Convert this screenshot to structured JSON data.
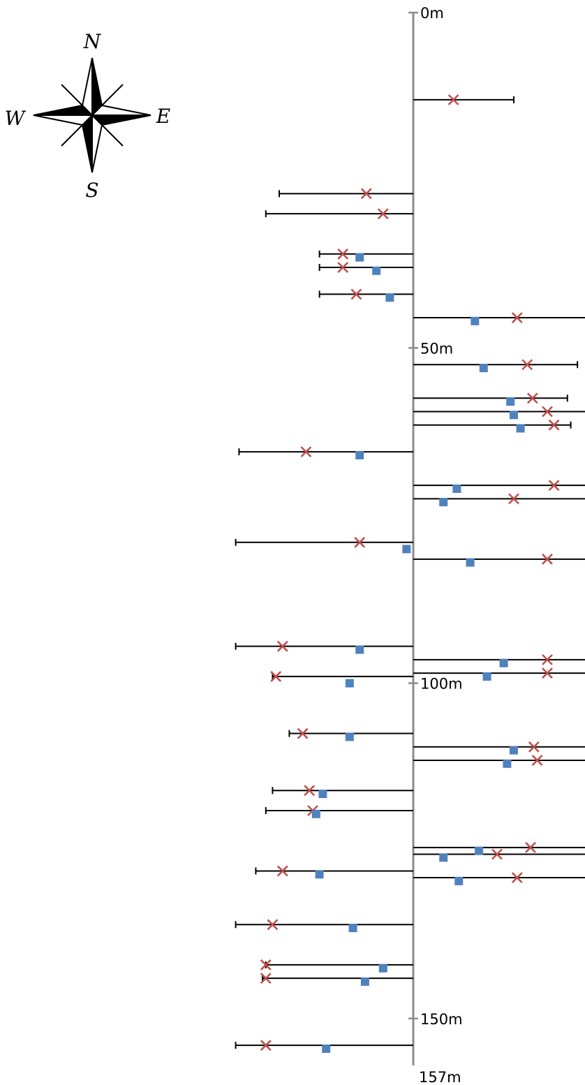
{
  "compass": {
    "icon": "compass-rose-icon",
    "north": "N",
    "south": "S",
    "east": "E",
    "west": "W"
  },
  "chart_data": {
    "type": "scatter",
    "orientation": "vertical-depth-axis",
    "title": "",
    "xlabel": "",
    "ylabel": "",
    "ylim": [
      0,
      157
    ],
    "ticks": [
      {
        "value": 0,
        "label": "0m"
      },
      {
        "value": 50,
        "label": "50m"
      },
      {
        "value": 100,
        "label": "100m"
      },
      {
        "value": 150,
        "label": "150m"
      }
    ],
    "axis_end_label": "157m",
    "x_range": [
      -26.5,
      26
    ],
    "colors": {
      "axis": "#8c8c8c",
      "bar": "#000000",
      "cross": "#c0504d",
      "square": "#4f81bd"
    },
    "series": [
      {
        "marker": "bar",
        "points": [
          {
            "depth": 13,
            "start": 0,
            "end": 15
          },
          {
            "depth": 27,
            "start": 0,
            "end": -20
          },
          {
            "depth": 30,
            "start": 0,
            "end": -22
          },
          {
            "depth": 36,
            "start": 0,
            "end": -14
          },
          {
            "depth": 38,
            "start": 0,
            "end": -14
          },
          {
            "depth": 42,
            "start": 0,
            "end": -14
          },
          {
            "depth": 45.5,
            "start": 0,
            "end": 26
          },
          {
            "depth": 52.5,
            "start": 0,
            "end": 24.5
          },
          {
            "depth": 57.5,
            "start": 0,
            "end": 23
          },
          {
            "depth": 59.5,
            "start": 0,
            "end": 26
          },
          {
            "depth": 61.5,
            "start": 0,
            "end": 23.5
          },
          {
            "depth": 65.5,
            "start": 0,
            "end": -26
          },
          {
            "depth": 70.5,
            "start": 0,
            "end": 26
          },
          {
            "depth": 72.5,
            "start": 0,
            "end": 26
          },
          {
            "depth": 79,
            "start": 0,
            "end": -26.5
          },
          {
            "depth": 81.5,
            "start": 0,
            "end": 26
          },
          {
            "depth": 94.5,
            "start": 0,
            "end": -26.5
          },
          {
            "depth": 96.5,
            "start": 0,
            "end": 26
          },
          {
            "depth": 98.5,
            "start": 0,
            "end": 26
          },
          {
            "depth": 99,
            "start": 0,
            "end": -21
          },
          {
            "depth": 107.5,
            "start": 0,
            "end": -18.5
          },
          {
            "depth": 109.5,
            "start": 0,
            "end": 26
          },
          {
            "depth": 111.5,
            "start": 0,
            "end": 26
          },
          {
            "depth": 116,
            "start": 0,
            "end": -21
          },
          {
            "depth": 119,
            "start": 0,
            "end": -22
          },
          {
            "depth": 124.5,
            "start": 0,
            "end": 26
          },
          {
            "depth": 125.5,
            "start": 0,
            "end": 26
          },
          {
            "depth": 128,
            "start": 0,
            "end": -23.5
          },
          {
            "depth": 129,
            "start": 0,
            "end": 26
          },
          {
            "depth": 136,
            "start": 0,
            "end": -26.5
          },
          {
            "depth": 142,
            "start": 0,
            "end": -22
          },
          {
            "depth": 144,
            "start": 0,
            "end": -22.5
          },
          {
            "depth": 154,
            "start": 0,
            "end": -26.5
          }
        ]
      },
      {
        "marker": "cross",
        "points": [
          {
            "depth": 13,
            "x": 6
          },
          {
            "depth": 27,
            "x": -7
          },
          {
            "depth": 30,
            "x": -4.5
          },
          {
            "depth": 36,
            "x": -10.5
          },
          {
            "depth": 38,
            "x": -10.5
          },
          {
            "depth": 42,
            "x": -8.5
          },
          {
            "depth": 45.5,
            "x": 15.5
          },
          {
            "depth": 52.5,
            "x": 17
          },
          {
            "depth": 57.5,
            "x": 17.8
          },
          {
            "depth": 59.5,
            "x": 20
          },
          {
            "depth": 61.5,
            "x": 21
          },
          {
            "depth": 65.5,
            "x": -16
          },
          {
            "depth": 70.5,
            "x": 21
          },
          {
            "depth": 72.5,
            "x": 15
          },
          {
            "depth": 79,
            "x": -8
          },
          {
            "depth": 81.5,
            "x": 20
          },
          {
            "depth": 94.5,
            "x": -19.5
          },
          {
            "depth": 96.5,
            "x": 20
          },
          {
            "depth": 98.5,
            "x": 20
          },
          {
            "depth": 99,
            "x": -20.5
          },
          {
            "depth": 107.5,
            "x": -16.5
          },
          {
            "depth": 109.5,
            "x": 18
          },
          {
            "depth": 111.5,
            "x": 18.5
          },
          {
            "depth": 116,
            "x": -15.5
          },
          {
            "depth": 119,
            "x": -15
          },
          {
            "depth": 124.5,
            "x": 17.5
          },
          {
            "depth": 125.5,
            "x": 12.5
          },
          {
            "depth": 128,
            "x": -19.5
          },
          {
            "depth": 129,
            "x": 15.5
          },
          {
            "depth": 136,
            "x": -21
          },
          {
            "depth": 142,
            "x": -22
          },
          {
            "depth": 144,
            "x": -22
          },
          {
            "depth": 154,
            "x": -22
          }
        ]
      },
      {
        "marker": "square",
        "points": [
          {
            "depth": 36.5,
            "x": -8
          },
          {
            "depth": 38.5,
            "x": -5.5
          },
          {
            "depth": 42.5,
            "x": -3.5
          },
          {
            "depth": 46,
            "x": 9.2
          },
          {
            "depth": 53,
            "x": 10.5
          },
          {
            "depth": 58,
            "x": 14.5
          },
          {
            "depth": 60,
            "x": 15
          },
          {
            "depth": 62,
            "x": 16
          },
          {
            "depth": 66,
            "x": -8
          },
          {
            "depth": 71,
            "x": 6.5
          },
          {
            "depth": 73,
            "x": 4.5
          },
          {
            "depth": 80,
            "x": -1
          },
          {
            "depth": 82,
            "x": 8.5
          },
          {
            "depth": 95,
            "x": -8
          },
          {
            "depth": 97,
            "x": 13.5
          },
          {
            "depth": 99,
            "x": 11
          },
          {
            "depth": 100,
            "x": -9.5
          },
          {
            "depth": 108,
            "x": -9.5
          },
          {
            "depth": 110,
            "x": 15
          },
          {
            "depth": 112,
            "x": 14
          },
          {
            "depth": 116.5,
            "x": -13.5
          },
          {
            "depth": 119.5,
            "x": -14.5
          },
          {
            "depth": 125,
            "x": 9.8
          },
          {
            "depth": 126,
            "x": 4.5
          },
          {
            "depth": 128.5,
            "x": -14
          },
          {
            "depth": 129.5,
            "x": 6.8
          },
          {
            "depth": 136.5,
            "x": -9
          },
          {
            "depth": 142.5,
            "x": -4.5
          },
          {
            "depth": 144.5,
            "x": -7.2
          },
          {
            "depth": 154.5,
            "x": -13
          }
        ]
      }
    ]
  }
}
